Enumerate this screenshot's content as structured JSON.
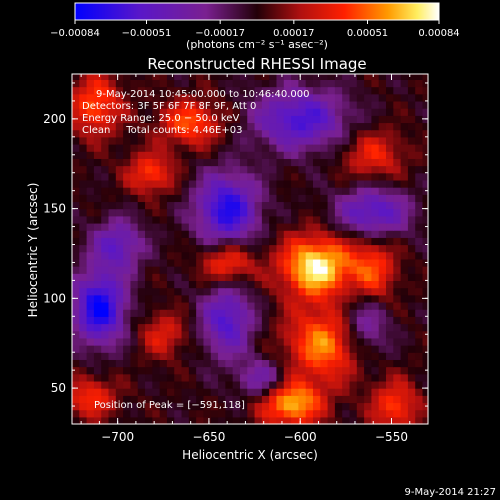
{
  "chart_data": {
    "type": "heatmap",
    "title": "Reconstructed RHESSI Image",
    "xlabel": "Heliocentric X (arcsec)",
    "ylabel": "Heliocentric Y (arcsec)",
    "xlim": [
      -725,
      -530
    ],
    "ylim": [
      30,
      225
    ],
    "x_ticks": [
      -700,
      -650,
      -600,
      -550
    ],
    "x_tick_labels": [
      "−700",
      "−650",
      "−600",
      "−550"
    ],
    "y_ticks": [
      50,
      100,
      150,
      200
    ],
    "y_tick_labels": [
      "50",
      "100",
      "150",
      "200"
    ],
    "colorbar": {
      "ticks": [
        -0.00084,
        -0.00051,
        -0.00017,
        0.00017,
        0.00051,
        0.00084
      ],
      "tick_labels": [
        "−0.00084",
        "−0.00051",
        "−0.00017",
        "0.00017",
        "0.00051",
        "0.00084"
      ],
      "unit_label": "(photons cm⁻² s⁻¹ asec⁻²)",
      "range": [
        -0.00084,
        0.00084
      ],
      "colors": [
        "#0000ff",
        "#5a17c8",
        "#7a2090",
        "#220008",
        "#b01010",
        "#ff2000",
        "#ff9a00",
        "#ffee60",
        "#ffffff"
      ]
    },
    "annotations": [
      "9-May-2014 10:45:00.000 to 10:46:40.000",
      "Detectors: 3F 5F 6F 7F 8F 9F, Att 0",
      "Energy Range: 25.0 − 50.0 keV",
      "Clean     Total counts: 4.46E+03"
    ],
    "peak_label": "Position of Peak = [−591,118]",
    "peak": [
      -591,
      118
    ],
    "sources": [
      {
        "x": -591,
        "y": 118,
        "sx": 14,
        "sy": 12,
        "a": 1.0
      },
      {
        "x": -585,
        "y": 75,
        "sx": 16,
        "sy": 14,
        "a": 0.75
      },
      {
        "x": -605,
        "y": 42,
        "sx": 12,
        "sy": 9,
        "a": 0.85
      },
      {
        "x": -712,
        "y": 208,
        "sx": 10,
        "sy": 12,
        "a": 0.6
      },
      {
        "x": -660,
        "y": 198,
        "sx": 12,
        "sy": 9,
        "a": 0.6
      },
      {
        "x": -560,
        "y": 115,
        "sx": 9,
        "sy": 14,
        "a": 0.55
      },
      {
        "x": -640,
        "y": 120,
        "sx": 10,
        "sy": 8,
        "a": 0.6
      },
      {
        "x": -682,
        "y": 170,
        "sx": 9,
        "sy": 8,
        "a": 0.55
      },
      {
        "x": -560,
        "y": 180,
        "sx": 12,
        "sy": 10,
        "a": 0.45
      },
      {
        "x": -548,
        "y": 40,
        "sx": 9,
        "sy": 10,
        "a": 0.55
      },
      {
        "x": -675,
        "y": 80,
        "sx": 9,
        "sy": 9,
        "a": 0.4
      },
      {
        "x": -715,
        "y": 45,
        "sx": 10,
        "sy": 8,
        "a": 0.5
      }
    ],
    "negatives": [
      {
        "x": -710,
        "y": 95,
        "sx": 10,
        "sy": 14,
        "a": 1.0
      },
      {
        "x": -640,
        "y": 150,
        "sx": 12,
        "sy": 14,
        "a": 0.9
      },
      {
        "x": -600,
        "y": 200,
        "sx": 18,
        "sy": 12,
        "a": 0.75
      },
      {
        "x": -560,
        "y": 148,
        "sx": 14,
        "sy": 10,
        "a": 0.7
      },
      {
        "x": -640,
        "y": 88,
        "sx": 10,
        "sy": 14,
        "a": 0.7
      },
      {
        "x": -565,
        "y": 85,
        "sx": 10,
        "sy": 14,
        "a": 0.6
      },
      {
        "x": -700,
        "y": 130,
        "sx": 10,
        "sy": 10,
        "a": 0.6
      },
      {
        "x": -620,
        "y": 55,
        "sx": 10,
        "sy": 8,
        "a": 0.5
      }
    ]
  },
  "footer_date": "9-May-2014 21:27"
}
